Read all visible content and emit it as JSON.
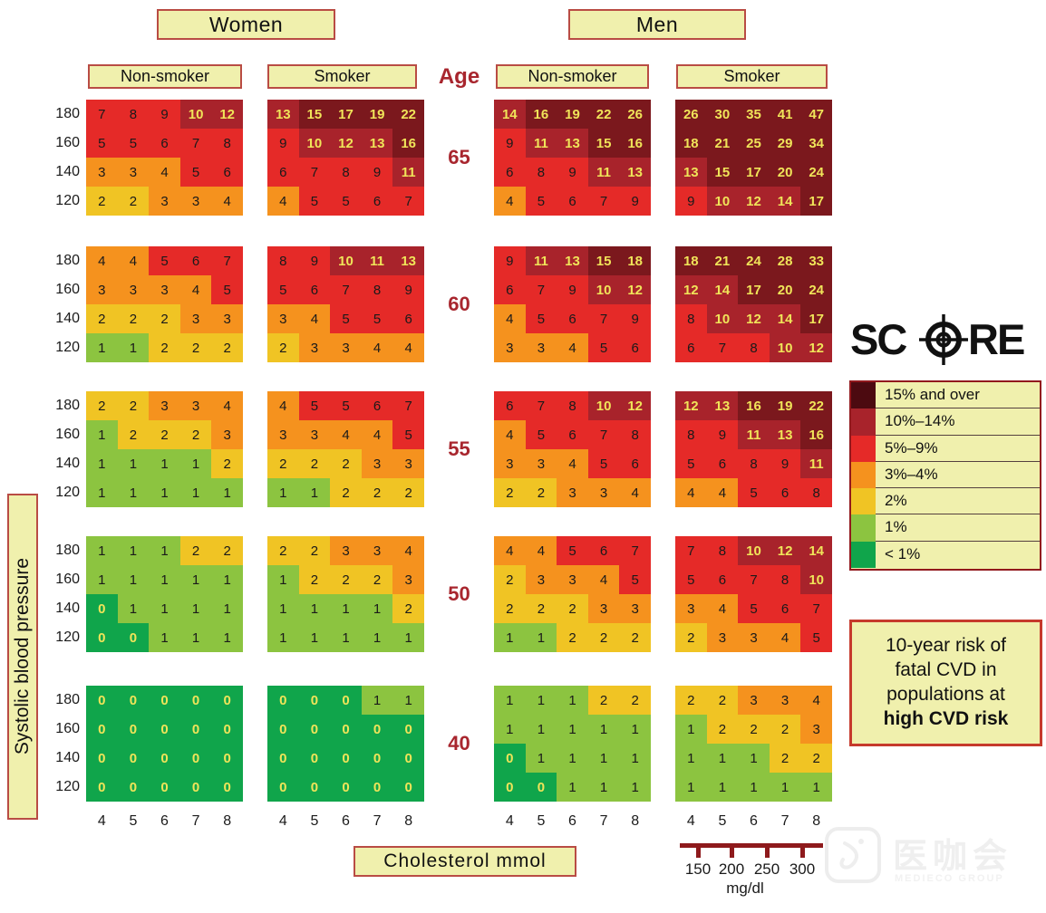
{
  "headers": {
    "women": "Women",
    "men": "Men",
    "age": "Age",
    "col_women_nonsmoker": "Non-smoker",
    "col_women_smoker": "Smoker",
    "col_men_nonsmoker": "Non-smoker",
    "col_men_smoker": "Smoker"
  },
  "axes": {
    "ylabel": "Systolic blood pressure",
    "xlabel": "Cholesterol  mmol",
    "sbp_ticks": [
      "180",
      "160",
      "140",
      "120"
    ],
    "chol_ticks": [
      "4",
      "5",
      "6",
      "7",
      "8"
    ],
    "ages": [
      "65",
      "60",
      "55",
      "50",
      "40"
    ]
  },
  "logo": {
    "left": "SC",
    "right": "RE"
  },
  "legend_title_box": {
    "lines": [
      "10-year risk of",
      "fatal CVD in",
      "populations at",
      "high CVD risk"
    ],
    "bold_last_line": true
  },
  "mgdl_scale": {
    "ticks": [
      "150",
      "200",
      "250",
      "300"
    ],
    "unit": "mg/dl"
  },
  "watermark": {
    "text": "医咖会",
    "subtext": "MEDIECO GROUP"
  },
  "chart_data": {
    "type": "heatmap",
    "title": "SCORE — 10-year risk of fatal CVD in populations at high CVD risk",
    "x": {
      "label": "Cholesterol mmol",
      "ticks": [
        4,
        5,
        6,
        7,
        8
      ]
    },
    "y": {
      "label": "Systolic blood pressure",
      "ticks": [
        180,
        160,
        140,
        120
      ]
    },
    "ages": [
      65,
      60,
      55,
      50,
      40
    ],
    "groups": [
      "women_nonsmoker",
      "women_smoker",
      "men_nonsmoker",
      "men_smoker"
    ],
    "bands": [
      {
        "min": 15,
        "label": "15% and over",
        "cell_color": "#7b181d",
        "legend_color": "#4c0a10",
        "text_color": "#f0e459",
        "bold": true
      },
      {
        "min": 10,
        "label": "10%–14%",
        "cell_color": "#a8232b",
        "legend_color": "#a8232b",
        "text_color": "#f0e459",
        "bold": true
      },
      {
        "min": 5,
        "label": "5%–9%",
        "cell_color": "#e52a28",
        "legend_color": "#e52a28",
        "text_color": "#1a1a1a",
        "bold": false
      },
      {
        "min": 3,
        "label": "3%–4%",
        "cell_color": "#f5921e",
        "legend_color": "#f5921e",
        "text_color": "#1a1a1a",
        "bold": false
      },
      {
        "min": 2,
        "label": "2%",
        "cell_color": "#f0c424",
        "legend_color": "#f0c424",
        "text_color": "#1a1a1a",
        "bold": false
      },
      {
        "min": 1,
        "label": "1%",
        "cell_color": "#8cc440",
        "legend_color": "#8cc440",
        "text_color": "#1a1a1a",
        "bold": false
      },
      {
        "min": 0,
        "label": "< 1%",
        "cell_color": "#10a54b",
        "legend_color": "#10a54b",
        "text_color": "#f0e459",
        "bold": true
      }
    ],
    "values": {
      "women_nonsmoker": {
        "65": [
          [
            7,
            8,
            9,
            10,
            12
          ],
          [
            5,
            5,
            6,
            7,
            8
          ],
          [
            3,
            3,
            4,
            5,
            6
          ],
          [
            2,
            2,
            3,
            3,
            4
          ]
        ],
        "60": [
          [
            4,
            4,
            5,
            6,
            7
          ],
          [
            3,
            3,
            3,
            4,
            5
          ],
          [
            2,
            2,
            2,
            3,
            3
          ],
          [
            1,
            1,
            2,
            2,
            2
          ]
        ],
        "55": [
          [
            2,
            2,
            3,
            3,
            4
          ],
          [
            1,
            2,
            2,
            2,
            3
          ],
          [
            1,
            1,
            1,
            1,
            2
          ],
          [
            1,
            1,
            1,
            1,
            1
          ]
        ],
        "50": [
          [
            1,
            1,
            1,
            2,
            2
          ],
          [
            1,
            1,
            1,
            1,
            1
          ],
          [
            0,
            1,
            1,
            1,
            1
          ],
          [
            0,
            0,
            1,
            1,
            1
          ]
        ],
        "40": [
          [
            0,
            0,
            0,
            0,
            0
          ],
          [
            0,
            0,
            0,
            0,
            0
          ],
          [
            0,
            0,
            0,
            0,
            0
          ],
          [
            0,
            0,
            0,
            0,
            0
          ]
        ]
      },
      "women_smoker": {
        "65": [
          [
            13,
            15,
            17,
            19,
            22
          ],
          [
            9,
            10,
            12,
            13,
            16
          ],
          [
            6,
            7,
            8,
            9,
            11
          ],
          [
            4,
            5,
            5,
            6,
            7
          ]
        ],
        "60": [
          [
            8,
            9,
            10,
            11,
            13
          ],
          [
            5,
            6,
            7,
            8,
            9
          ],
          [
            3,
            4,
            5,
            5,
            6
          ],
          [
            2,
            3,
            3,
            4,
            4
          ]
        ],
        "55": [
          [
            4,
            5,
            5,
            6,
            7
          ],
          [
            3,
            3,
            4,
            4,
            5
          ],
          [
            2,
            2,
            2,
            3,
            3
          ],
          [
            1,
            1,
            2,
            2,
            2
          ]
        ],
        "50": [
          [
            2,
            2,
            3,
            3,
            4
          ],
          [
            1,
            2,
            2,
            2,
            3
          ],
          [
            1,
            1,
            1,
            1,
            2
          ],
          [
            1,
            1,
            1,
            1,
            1
          ]
        ],
        "40": [
          [
            0,
            0,
            0,
            1,
            1
          ],
          [
            0,
            0,
            0,
            0,
            0
          ],
          [
            0,
            0,
            0,
            0,
            0
          ],
          [
            0,
            0,
            0,
            0,
            0
          ]
        ]
      },
      "men_nonsmoker": {
        "65": [
          [
            14,
            16,
            19,
            22,
            26
          ],
          [
            9,
            11,
            13,
            15,
            16
          ],
          [
            6,
            8,
            9,
            11,
            13
          ],
          [
            4,
            5,
            6,
            7,
            9
          ]
        ],
        "60": [
          [
            9,
            11,
            13,
            15,
            18
          ],
          [
            6,
            7,
            9,
            10,
            12
          ],
          [
            4,
            5,
            6,
            7,
            9
          ],
          [
            3,
            3,
            4,
            5,
            6
          ]
        ],
        "55": [
          [
            6,
            7,
            8,
            10,
            12
          ],
          [
            4,
            5,
            6,
            7,
            8
          ],
          [
            3,
            3,
            4,
            5,
            6
          ],
          [
            2,
            2,
            3,
            3,
            4
          ]
        ],
        "50": [
          [
            4,
            4,
            5,
            6,
            7
          ],
          [
            2,
            3,
            3,
            4,
            5
          ],
          [
            2,
            2,
            2,
            3,
            3
          ],
          [
            1,
            1,
            2,
            2,
            2
          ]
        ],
        "40": [
          [
            1,
            1,
            1,
            2,
            2
          ],
          [
            1,
            1,
            1,
            1,
            1
          ],
          [
            0,
            1,
            1,
            1,
            1
          ],
          [
            0,
            0,
            1,
            1,
            1
          ]
        ]
      },
      "men_smoker": {
        "65": [
          [
            26,
            30,
            35,
            41,
            47
          ],
          [
            18,
            21,
            25,
            29,
            34
          ],
          [
            13,
            15,
            17,
            20,
            24
          ],
          [
            9,
            10,
            12,
            14,
            17
          ]
        ],
        "60": [
          [
            18,
            21,
            24,
            28,
            33
          ],
          [
            12,
            14,
            17,
            20,
            24
          ],
          [
            8,
            10,
            12,
            14,
            17
          ],
          [
            6,
            7,
            8,
            10,
            12
          ]
        ],
        "55": [
          [
            12,
            13,
            16,
            19,
            22
          ],
          [
            8,
            9,
            11,
            13,
            16
          ],
          [
            5,
            6,
            8,
            9,
            11
          ],
          [
            4,
            4,
            5,
            6,
            8
          ]
        ],
        "50": [
          [
            7,
            8,
            10,
            12,
            14
          ],
          [
            5,
            6,
            7,
            8,
            10
          ],
          [
            3,
            4,
            5,
            6,
            7
          ],
          [
            2,
            3,
            3,
            4,
            5
          ]
        ],
        "40": [
          [
            2,
            2,
            3,
            3,
            4
          ],
          [
            1,
            2,
            2,
            2,
            3
          ],
          [
            1,
            1,
            1,
            2,
            2
          ],
          [
            1,
            1,
            1,
            1,
            1
          ]
        ]
      }
    },
    "mgdl_axis": {
      "ticks": [
        150,
        200,
        250,
        300
      ],
      "unit": "mg/dl"
    },
    "legend_position": "right",
    "grid": false
  }
}
